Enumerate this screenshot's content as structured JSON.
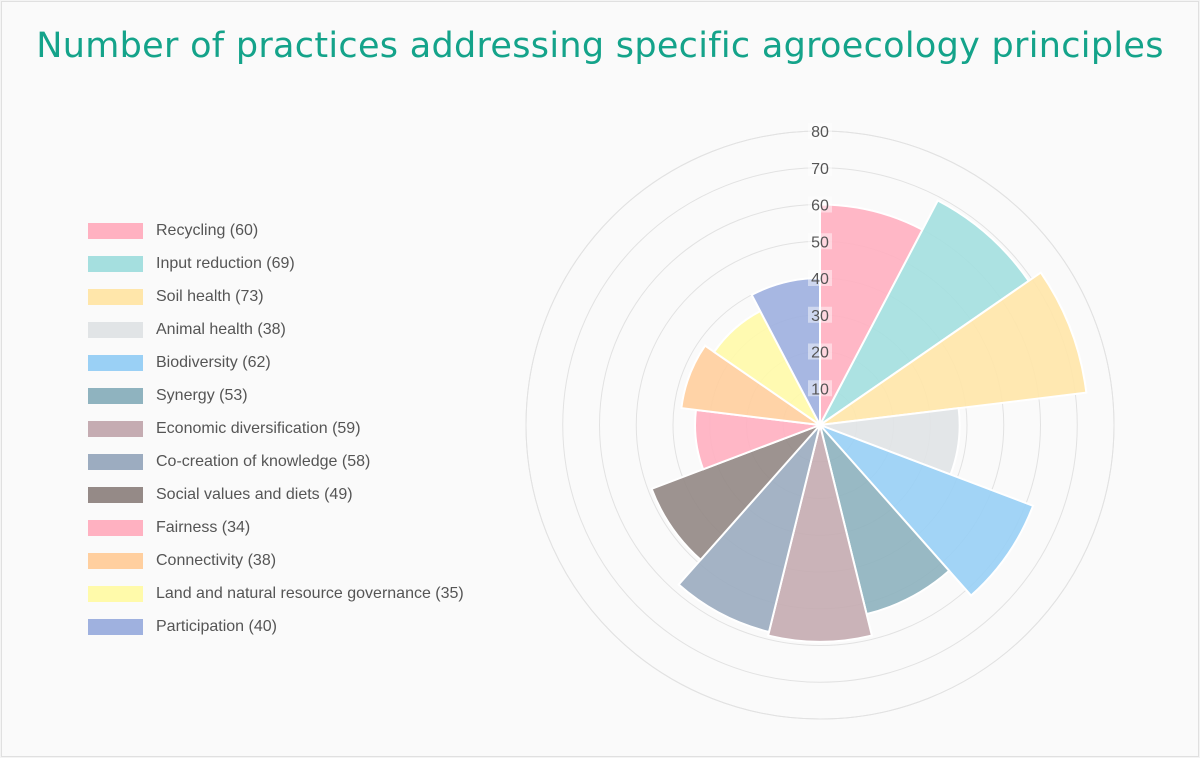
{
  "title": "Number of practices addressing specific agroecology principles",
  "chart_data": {
    "type": "polarArea",
    "title": "Number of practices addressing specific agroecology principles",
    "r_ticks": [
      "10",
      "20",
      "30",
      "40",
      "50",
      "60",
      "70",
      "80"
    ],
    "r_range": [
      0,
      80
    ],
    "grid": true,
    "legend_position": "left",
    "categories": [
      "Recycling",
      "Input reduction",
      "Soil health",
      "Animal health",
      "Biodiversity",
      "Synergy",
      "Economic diversification",
      "Co-creation of knowledge",
      "Social values and diets",
      "Fairness",
      "Connectivity",
      "Land and natural resource governance",
      "Participation"
    ],
    "values": [
      60,
      69,
      73,
      38,
      62,
      53,
      59,
      58,
      49,
      34,
      38,
      35,
      40
    ],
    "legend_labels": [
      "Recycling (60)",
      "Input reduction (69)",
      "Soil health (73)",
      "Animal health (38)",
      "Biodiversity (62)",
      "Synergy (53)",
      "Economic diversification (59)",
      "Co-creation of knowledge (58)",
      "Social values and diets (49)",
      "Fairness (34)",
      "Connectivity (38)",
      "Land and natural resource governance (35)",
      "Participation (40)"
    ],
    "colors": [
      "#ffb1c1",
      "#a5dfdf",
      "#ffe6aa",
      "#e1e4e6",
      "#9ad0f5",
      "#8fb3bf",
      "#c5acb2",
      "#9cacc0",
      "#958a87",
      "#ffb1c1",
      "#ffcf9f",
      "#fffaaa",
      "#9fb1df"
    ]
  }
}
